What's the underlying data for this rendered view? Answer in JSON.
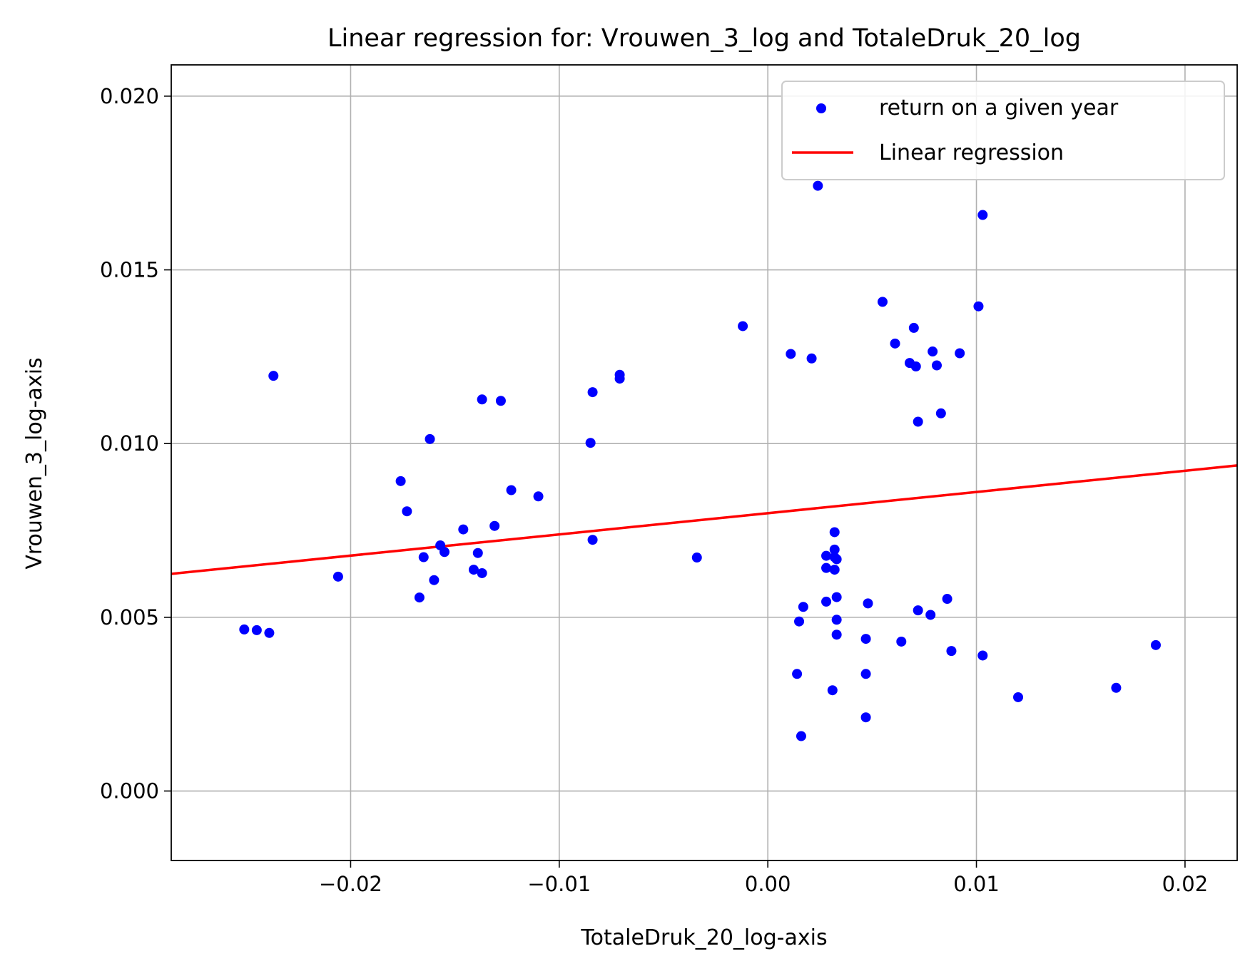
{
  "chart_data": {
    "type": "scatter",
    "title": "Linear regression for: Vrouwen_3_log and TotaleDruk_20_log",
    "xlabel": "TotaleDruk_20_log-axis",
    "ylabel": "Vrouwen_3_log-axis",
    "xlim": [
      -0.0286,
      0.0225
    ],
    "ylim": [
      -0.002,
      0.0209
    ],
    "xticks": [
      -0.02,
      -0.01,
      0.0,
      0.01,
      0.02
    ],
    "xtick_labels": [
      "−0.02",
      "−0.01",
      "0.00",
      "0.01",
      "0.02"
    ],
    "yticks": [
      0.0,
      0.005,
      0.01,
      0.015,
      0.02
    ],
    "ytick_labels": [
      "0.000",
      "0.005",
      "0.010",
      "0.015",
      "0.020"
    ],
    "grid": true,
    "legend_position": "top-right",
    "series": [
      {
        "name": "return on a given year",
        "kind": "scatter",
        "color": "#0000ff",
        "points": [
          [
            -0.0251,
            0.00465
          ],
          [
            -0.0245,
            0.00463
          ],
          [
            -0.0239,
            0.00455
          ],
          [
            -0.0237,
            0.01195
          ],
          [
            -0.0206,
            0.00617
          ],
          [
            -0.0176,
            0.00892
          ],
          [
            -0.0173,
            0.00805
          ],
          [
            -0.0167,
            0.00557
          ],
          [
            -0.0165,
            0.00673
          ],
          [
            -0.0162,
            0.01013
          ],
          [
            -0.016,
            0.00607
          ],
          [
            -0.0157,
            0.00707
          ],
          [
            -0.0155,
            0.00688
          ],
          [
            -0.0146,
            0.00753
          ],
          [
            -0.0141,
            0.00637
          ],
          [
            -0.0139,
            0.00685
          ],
          [
            -0.0137,
            0.01127
          ],
          [
            -0.0137,
            0.00627
          ],
          [
            -0.0131,
            0.00763
          ],
          [
            -0.0128,
            0.01123
          ],
          [
            -0.0123,
            0.00866
          ],
          [
            -0.011,
            0.00848
          ],
          [
            -0.0085,
            0.01002
          ],
          [
            -0.0084,
            0.01148
          ],
          [
            -0.0084,
            0.00723
          ],
          [
            -0.0071,
            0.01198
          ],
          [
            -0.0071,
            0.01187
          ],
          [
            -0.0034,
            0.00672
          ],
          [
            -0.0012,
            0.01338
          ],
          [
            0.0011,
            0.01258
          ],
          [
            0.0014,
            0.00337
          ],
          [
            0.0015,
            0.00488
          ],
          [
            0.0016,
            0.00158
          ],
          [
            0.0017,
            0.0053
          ],
          [
            0.0021,
            0.01245
          ],
          [
            0.0024,
            0.01742
          ],
          [
            0.0028,
            0.00545
          ],
          [
            0.0028,
            0.00642
          ],
          [
            0.0028,
            0.00677
          ],
          [
            0.0031,
            0.0029
          ],
          [
            0.0032,
            0.00745
          ],
          [
            0.0032,
            0.00695
          ],
          [
            0.0032,
            0.00673
          ],
          [
            0.0032,
            0.00637
          ],
          [
            0.0033,
            0.00558
          ],
          [
            0.0033,
            0.00493
          ],
          [
            0.0033,
            0.0045
          ],
          [
            0.0033,
            0.00667
          ],
          [
            0.0047,
            0.00438
          ],
          [
            0.0047,
            0.00337
          ],
          [
            0.0047,
            0.00212
          ],
          [
            0.0048,
            0.0054
          ],
          [
            0.0055,
            0.01408
          ],
          [
            0.0061,
            0.01288
          ],
          [
            0.0064,
            0.0043
          ],
          [
            0.0068,
            0.01232
          ],
          [
            0.007,
            0.01333
          ],
          [
            0.0071,
            0.01222
          ],
          [
            0.0072,
            0.01063
          ],
          [
            0.0072,
            0.0052
          ],
          [
            0.0078,
            0.00507
          ],
          [
            0.0079,
            0.01265
          ],
          [
            0.0081,
            0.01225
          ],
          [
            0.0083,
            0.01087
          ],
          [
            0.0086,
            0.00553
          ],
          [
            0.0088,
            0.00403
          ],
          [
            0.0092,
            0.0126
          ],
          [
            0.0101,
            0.01395
          ],
          [
            0.0103,
            0.01658
          ],
          [
            0.0103,
            0.0039
          ],
          [
            0.012,
            0.0027
          ],
          [
            0.0167,
            0.00297
          ],
          [
            0.0186,
            0.0042
          ]
        ]
      },
      {
        "name": "Linear regression",
        "kind": "line",
        "color": "#ff0000",
        "x": [
          -0.0286,
          0.0225
        ],
        "y": [
          0.00625,
          0.00937
        ]
      }
    ]
  }
}
